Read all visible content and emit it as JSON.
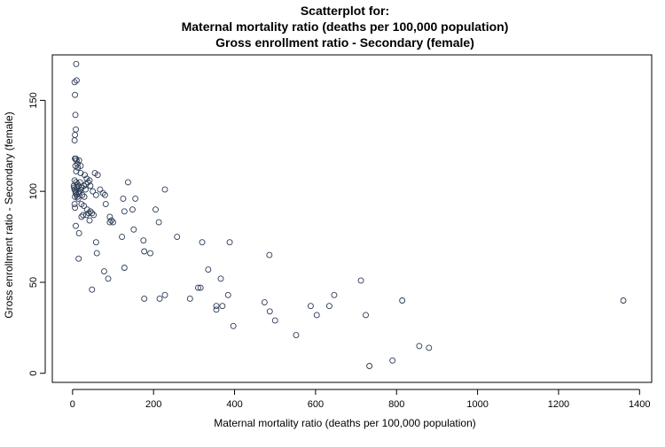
{
  "chart_data": {
    "type": "scatter",
    "title_lines": [
      "Scatterplot for:",
      "Maternal mortality ratio (deaths per 100,000 population)",
      "Gross enrollment ratio - Secondary (female)"
    ],
    "xlabel": "Maternal mortality ratio (deaths per 100,000 population)",
    "ylabel": "Gross enrollment ratio - Secondary (female)",
    "xlim": [
      -50,
      1430
    ],
    "ylim": [
      -5,
      175
    ],
    "x_ticks": [
      0,
      200,
      400,
      600,
      800,
      1000,
      1200,
      1400
    ],
    "y_ticks": [
      0,
      50,
      100,
      150
    ],
    "grid": false,
    "legend": "none",
    "marker_color": "#2b3a55",
    "points": [
      [
        9,
        170
      ],
      [
        5,
        160
      ],
      [
        10,
        161
      ],
      [
        6,
        153
      ],
      [
        7,
        142
      ],
      [
        8,
        134
      ],
      [
        6,
        131
      ],
      [
        5,
        128
      ],
      [
        6,
        118
      ],
      [
        8,
        118
      ],
      [
        10,
        117
      ],
      [
        12,
        115
      ],
      [
        16,
        117
      ],
      [
        20,
        114
      ],
      [
        7,
        114
      ],
      [
        13,
        113
      ],
      [
        9,
        111
      ],
      [
        20,
        110
      ],
      [
        30,
        109
      ],
      [
        35,
        107
      ],
      [
        42,
        106
      ],
      [
        55,
        110
      ],
      [
        62,
        109
      ],
      [
        5,
        106
      ],
      [
        9,
        105
      ],
      [
        12,
        104
      ],
      [
        15,
        103
      ],
      [
        18,
        105
      ],
      [
        22,
        102
      ],
      [
        28,
        103
      ],
      [
        33,
        104
      ],
      [
        38,
        105
      ],
      [
        44,
        103
      ],
      [
        50,
        100
      ],
      [
        58,
        98
      ],
      [
        68,
        101
      ],
      [
        75,
        99
      ],
      [
        80,
        98
      ],
      [
        5,
        101
      ],
      [
        7,
        100
      ],
      [
        8,
        99
      ],
      [
        10,
        98
      ],
      [
        12,
        97
      ],
      [
        14,
        96
      ],
      [
        16,
        99
      ],
      [
        18,
        100
      ],
      [
        20,
        101
      ],
      [
        24,
        98
      ],
      [
        29,
        97
      ],
      [
        32,
        101
      ],
      [
        3,
        103
      ],
      [
        4,
        102
      ],
      [
        6,
        97
      ],
      [
        11,
        102
      ],
      [
        5,
        93
      ],
      [
        6,
        91
      ],
      [
        22,
        93
      ],
      [
        28,
        92
      ],
      [
        36,
        90
      ],
      [
        40,
        88
      ],
      [
        44,
        89
      ],
      [
        48,
        88
      ],
      [
        52,
        87
      ],
      [
        26,
        87
      ],
      [
        22,
        86
      ],
      [
        34,
        87
      ],
      [
        42,
        84
      ],
      [
        82,
        93
      ],
      [
        92,
        86
      ],
      [
        96,
        84
      ],
      [
        100,
        83
      ],
      [
        92,
        83
      ],
      [
        125,
        96
      ],
      [
        155,
        96
      ],
      [
        137,
        105
      ],
      [
        148,
        90
      ],
      [
        128,
        89
      ],
      [
        205,
        90
      ],
      [
        213,
        83
      ],
      [
        228,
        101
      ],
      [
        8,
        81
      ],
      [
        16,
        77
      ],
      [
        58,
        72
      ],
      [
        60,
        66
      ],
      [
        122,
        75
      ],
      [
        151,
        79
      ],
      [
        175,
        73
      ],
      [
        192,
        66
      ],
      [
        177,
        67
      ],
      [
        258,
        75
      ],
      [
        320,
        72
      ],
      [
        388,
        72
      ],
      [
        15,
        63
      ],
      [
        78,
        56
      ],
      [
        88,
        52
      ],
      [
        128,
        58
      ],
      [
        335,
        57
      ],
      [
        486,
        65
      ],
      [
        48,
        46
      ],
      [
        177,
        41
      ],
      [
        215,
        41
      ],
      [
        228,
        43
      ],
      [
        290,
        41
      ],
      [
        310,
        47
      ],
      [
        316,
        47
      ],
      [
        366,
        52
      ],
      [
        384,
        43
      ],
      [
        355,
        37
      ],
      [
        370,
        37
      ],
      [
        355,
        35
      ],
      [
        397,
        26
      ],
      [
        474,
        39
      ],
      [
        487,
        34
      ],
      [
        500,
        29
      ],
      [
        552,
        21
      ],
      [
        588,
        37
      ],
      [
        603,
        32
      ],
      [
        634,
        37
      ],
      [
        646,
        43
      ],
      [
        712,
        51
      ],
      [
        724,
        32
      ],
      [
        814,
        40
      ],
      [
        733,
        4
      ],
      [
        790,
        7
      ],
      [
        856,
        15
      ],
      [
        880,
        14
      ],
      [
        1360,
        40
      ]
    ]
  }
}
